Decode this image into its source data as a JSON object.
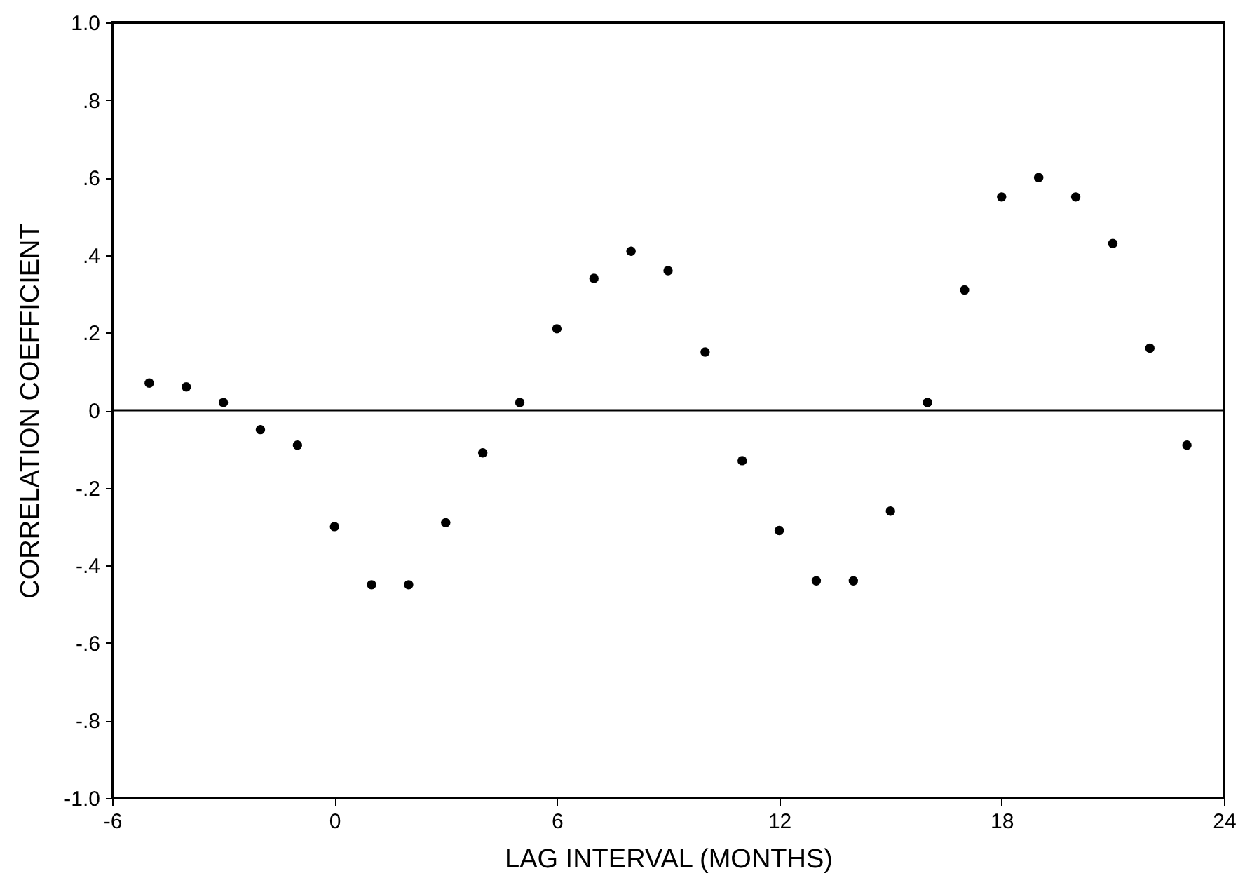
{
  "chart_data": {
    "type": "scatter",
    "xlabel": "LAG INTERVAL (MONTHS)",
    "ylabel": "CORRELATION COEFFICIENT",
    "x": [
      -5,
      -4,
      -3,
      -2,
      -1,
      0,
      1,
      2,
      3,
      4,
      5,
      6,
      7,
      8,
      9,
      10,
      11,
      12,
      13,
      14,
      15,
      16,
      17,
      18,
      19,
      20,
      21,
      22,
      23
    ],
    "series": [
      {
        "color": "#000000",
        "values": [
          0.07,
          0.06,
          0.02,
          -0.05,
          -0.09,
          -0.3,
          -0.45,
          -0.45,
          -0.29,
          -0.11,
          0.02,
          0.21,
          0.34,
          0.41,
          0.36,
          0.15,
          -0.13,
          -0.31,
          -0.44,
          -0.44,
          -0.26,
          0.02,
          0.31,
          0.55,
          0.6,
          0.55,
          0.43,
          0.16,
          -0.09
        ]
      }
    ],
    "xlim": [
      -6,
      24
    ],
    "xticks": [
      -6,
      0,
      6,
      12,
      18,
      24
    ],
    "ylim": [
      -1,
      1
    ],
    "yticks": [
      {
        "value": -1,
        "label": "-1.0"
      },
      {
        "value": -0.8,
        "label": "-.8"
      },
      {
        "value": -0.6,
        "label": "-.6"
      },
      {
        "value": -0.4,
        "label": "-.4"
      },
      {
        "value": -0.2,
        "label": "-.2"
      },
      0,
      {
        "value": 0.2,
        "label": ".2"
      },
      {
        "value": 0.4,
        "label": ".4"
      },
      {
        "value": 0.6,
        "label": ".6"
      },
      {
        "value": 0.8,
        "label": ".8"
      },
      {
        "value": 1,
        "label": "1.0"
      }
    ],
    "ref_lines": [
      {
        "axis": "y",
        "value": 0,
        "color": "#000000"
      }
    ],
    "marker": "circle",
    "grid": false
  }
}
